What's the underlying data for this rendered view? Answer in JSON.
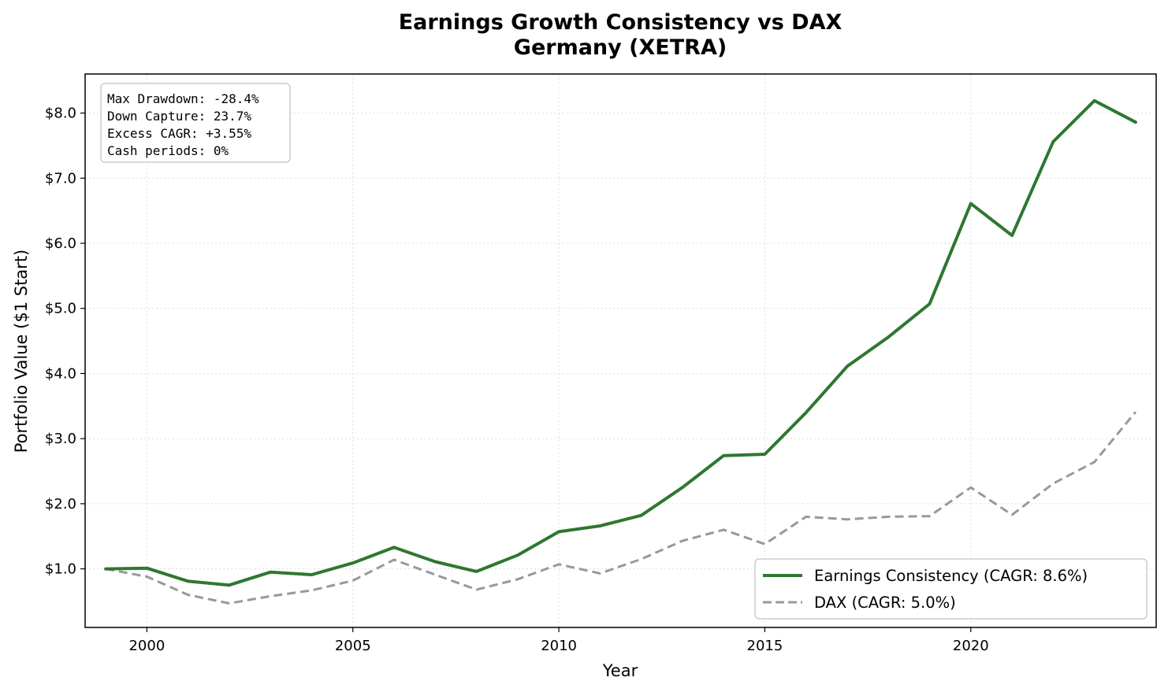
{
  "chart_data": {
    "type": "line",
    "title": "Earnings Growth Consistency vs DAX",
    "subtitle": "Germany (XETRA)",
    "xlabel": "Year",
    "ylabel": "Portfolio Value ($1 Start)",
    "xlim": [
      1998.5,
      2024.5
    ],
    "ylim": [
      0.1,
      8.6
    ],
    "x_ticks": [
      2000,
      2005,
      2010,
      2015,
      2020
    ],
    "x_tick_labels": [
      "2000",
      "2005",
      "2010",
      "2015",
      "2020"
    ],
    "y_ticks": [
      1,
      2,
      3,
      4,
      5,
      6,
      7,
      8
    ],
    "y_tick_labels": [
      "$1.0",
      "$2.0",
      "$3.0",
      "$4.0",
      "$5.0",
      "$6.0",
      "$7.0",
      "$8.0"
    ],
    "grid": true,
    "legend_position": "bottom-right",
    "x": [
      1999,
      2000,
      2001,
      2002,
      2003,
      2004,
      2005,
      2006,
      2007,
      2008,
      2009,
      2010,
      2011,
      2012,
      2013,
      2014,
      2015,
      2016,
      2017,
      2018,
      2019,
      2020,
      2021,
      2022,
      2023,
      2024
    ],
    "series": [
      {
        "name": "Earnings Consistency  (CAGR: 8.6%)",
        "color": "#2e7731",
        "style": "solid",
        "values": [
          1.0,
          1.01,
          0.81,
          0.75,
          0.95,
          0.91,
          1.09,
          1.33,
          1.11,
          0.96,
          1.21,
          1.57,
          1.66,
          1.82,
          2.25,
          2.74,
          2.76,
          3.4,
          4.11,
          4.56,
          5.07,
          6.61,
          6.12,
          7.56,
          8.19,
          7.86
        ]
      },
      {
        "name": "DAX  (CAGR: 5.0%)",
        "color": "#999999",
        "style": "dashed",
        "values": [
          1.0,
          0.88,
          0.6,
          0.47,
          0.58,
          0.67,
          0.82,
          1.14,
          0.91,
          0.68,
          0.84,
          1.07,
          0.93,
          1.15,
          1.43,
          1.6,
          1.38,
          1.8,
          1.76,
          1.8,
          1.81,
          2.25,
          1.83,
          2.31,
          2.64,
          3.41
        ]
      }
    ],
    "annotation_lines": [
      "Max Drawdown: -28.4%",
      "Down Capture: 23.7%",
      "Excess CAGR: +3.55%",
      "Cash periods: 0%"
    ]
  }
}
